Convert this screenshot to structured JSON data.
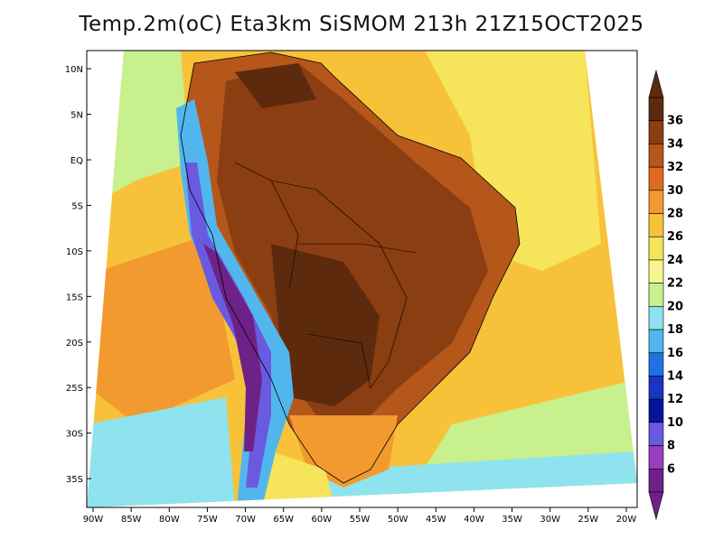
{
  "title": "Temp.2m(oC) Eta3km SiSMOM 213h 21Z15OCT2025",
  "lat_ticks": [
    {
      "label": "10N",
      "value": 10
    },
    {
      "label": "5N",
      "value": 5
    },
    {
      "label": "EQ",
      "value": 0
    },
    {
      "label": "5S",
      "value": -5
    },
    {
      "label": "10S",
      "value": -10
    },
    {
      "label": "15S",
      "value": -15
    },
    {
      "label": "20S",
      "value": -20
    },
    {
      "label": "25S",
      "value": -25
    },
    {
      "label": "30S",
      "value": -30
    },
    {
      "label": "35S",
      "value": -35
    }
  ],
  "lon_ticks": [
    {
      "label": "90W",
      "value": -90
    },
    {
      "label": "85W",
      "value": -85
    },
    {
      "label": "80W",
      "value": -80
    },
    {
      "label": "75W",
      "value": -75
    },
    {
      "label": "70W",
      "value": -70
    },
    {
      "label": "65W",
      "value": -65
    },
    {
      "label": "60W",
      "value": -60
    },
    {
      "label": "55W",
      "value": -55
    },
    {
      "label": "50W",
      "value": -50
    },
    {
      "label": "45W",
      "value": -45
    },
    {
      "label": "40W",
      "value": -40
    },
    {
      "label": "35W",
      "value": -35
    },
    {
      "label": "30W",
      "value": -30
    },
    {
      "label": "25W",
      "value": -25
    },
    {
      "label": "20W",
      "value": -20
    }
  ],
  "colorbar": {
    "levels": [
      "36",
      "34",
      "32",
      "30",
      "28",
      "26",
      "24",
      "22",
      "20",
      "18",
      "16",
      "14",
      "12",
      "10",
      "8",
      "6"
    ],
    "colors": [
      "#5e2a0e",
      "#8a3e12",
      "#b5561a",
      "#de6a1f",
      "#f29a30",
      "#f7c23a",
      "#f6e45a",
      "#f7f58f",
      "#c8f08c",
      "#8ee3ee",
      "#52b6ee",
      "#1f73e0",
      "#1a34c4",
      "#06149a",
      "#6a5ae0",
      "#9a3cc0",
      "#6e2287"
    ],
    "top_arrow_color": "#5e2a0e",
    "bottom_arrow_color": "#6e2287"
  },
  "field_colors": {
    "ocean_warm": "#f7c23a",
    "ocean_mid": "#f29a30",
    "ocean_cool": "#f6e45a",
    "ocean_cold": "#c8f08c",
    "land_hot": "#b5561a",
    "land_very_hot": "#8a3e12",
    "land_extreme": "#5e2a0e",
    "andes_cold": "#52b6ee",
    "andes_very_cold": "#6a5ae0",
    "andes_extreme": "#6e2287",
    "south_cool": "#8ee3ee"
  }
}
